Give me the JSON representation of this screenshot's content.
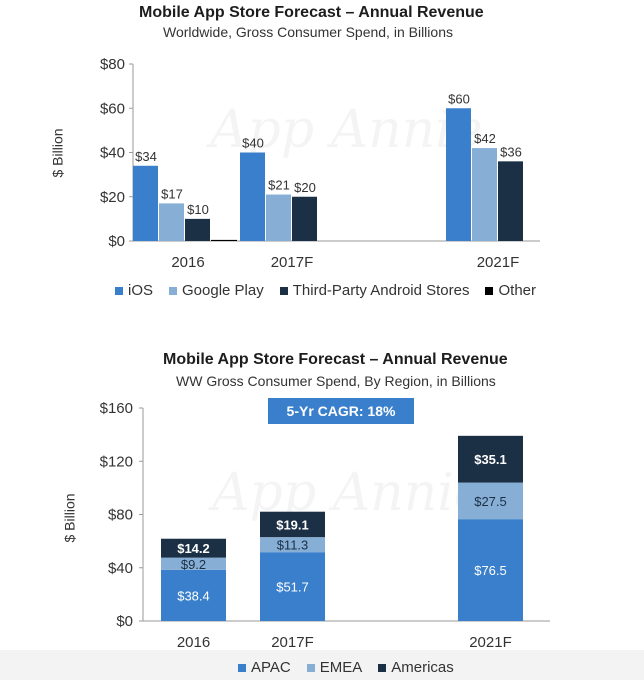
{
  "chart_data": [
    {
      "type": "bar",
      "title": "Mobile App Store Forecast – Annual Revenue",
      "subtitle": "Worldwide, Gross Consumer Spend, in Billions",
      "ylabel": "$ Billion",
      "xlabel": "",
      "ylim": [
        0,
        80
      ],
      "yticks": [
        "$0",
        "$20",
        "$40",
        "$60",
        "$80"
      ],
      "yticks_values": [
        0,
        20,
        40,
        60,
        80
      ],
      "categories": [
        "2016",
        "2017F",
        "2021F"
      ],
      "series": [
        {
          "name": "iOS",
          "color": "#3a7fcb",
          "values": [
            34,
            40,
            60
          ],
          "labels": [
            "$34",
            "$40",
            "$60"
          ]
        },
        {
          "name": "Google Play",
          "color": "#87afd6",
          "values": [
            17,
            21,
            42
          ],
          "labels": [
            "$17",
            "$21",
            "$42"
          ]
        },
        {
          "name": "Third-Party Android Stores",
          "color": "#1b2f45",
          "values": [
            10,
            20,
            36
          ],
          "labels": [
            "$10",
            "$20",
            "$36"
          ]
        },
        {
          "name": "Other",
          "color": "#000000",
          "values": [
            0.5,
            0,
            0
          ],
          "labels": [
            "",
            "",
            ""
          ]
        }
      ],
      "watermark": "App Annie"
    },
    {
      "type": "bar",
      "stacked": true,
      "title": "Mobile App Store Forecast – Annual Revenue",
      "subtitle": "WW Gross Consumer Spend, By Region, in Billions",
      "ylabel": "$ Billion",
      "xlabel": "",
      "ylim": [
        0,
        160
      ],
      "yticks": [
        "$0",
        "$40",
        "$80",
        "$120",
        "$160"
      ],
      "yticks_values": [
        0,
        40,
        80,
        120,
        160
      ],
      "categories": [
        "2016",
        "2017F",
        "2021F"
      ],
      "annotation": "5-Yr CAGR: 18%",
      "series": [
        {
          "name": "APAC",
          "color": "#3a7fcb",
          "values": [
            38.4,
            51.7,
            76.5
          ],
          "labels": [
            "$38.4",
            "$51.7",
            "$76.5"
          ]
        },
        {
          "name": "EMEA",
          "color": "#87afd6",
          "values": [
            9.2,
            11.3,
            27.5
          ],
          "labels": [
            "$9.2",
            "$11.3",
            "$27.5"
          ]
        },
        {
          "name": "Americas",
          "color": "#1b2f45",
          "values": [
            14.2,
            19.1,
            35.1
          ],
          "labels": [
            "$14.2",
            "$19.1",
            "$35.1"
          ]
        }
      ],
      "watermark": "App Annie"
    }
  ]
}
